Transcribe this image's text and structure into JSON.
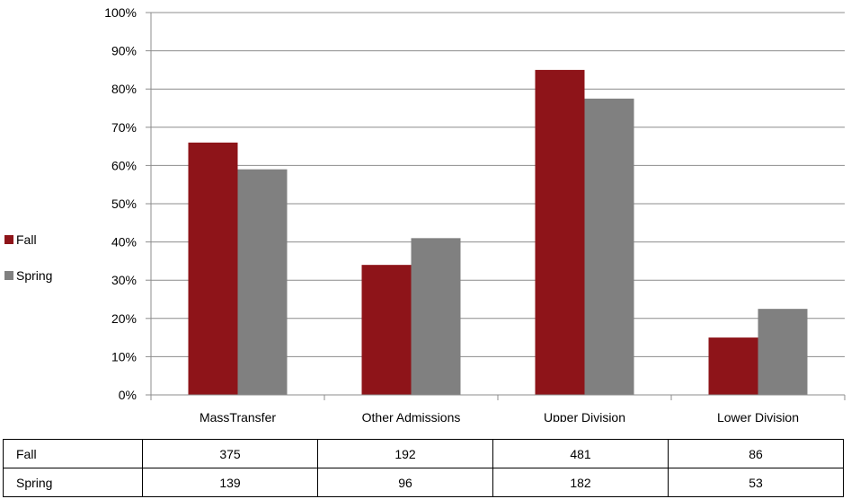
{
  "chart_data": {
    "type": "bar",
    "categories": [
      "MassTransfer",
      "Other Admissions",
      "Upper Division",
      "Lower Division"
    ],
    "series": [
      {
        "name": "Fall",
        "values": [
          66,
          34,
          85,
          15
        ],
        "color": "#8e1419"
      },
      {
        "name": "Spring",
        "values": [
          59,
          41,
          77.5,
          22.5
        ],
        "color": "#808080"
      }
    ],
    "title": "",
    "xlabel": "",
    "ylabel": "",
    "ylim": [
      0,
      100
    ],
    "yticks": [
      "0%",
      "10%",
      "20%",
      "30%",
      "40%",
      "50%",
      "60%",
      "70%",
      "80%",
      "90%",
      "100%"
    ],
    "grid": true,
    "legend_position": "left",
    "table": {
      "rows": [
        {
          "label": "Fall",
          "values": [
            "375",
            "192",
            "481",
            "86"
          ]
        },
        {
          "label": "Spring",
          "values": [
            "139",
            "96",
            "182",
            "53"
          ]
        }
      ]
    }
  }
}
